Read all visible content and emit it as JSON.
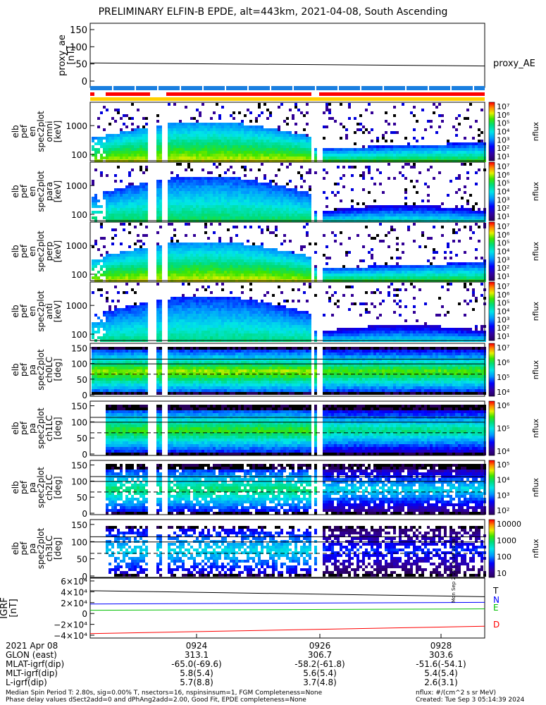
{
  "title": "PRELIMINARY ELFIN-B EPDE, alt=443km, 2021-04-08, South Ascending",
  "chart_data": [
    {
      "type": "line",
      "name": "proxy_ae",
      "ylabel_lines": [
        "proxy_ae",
        "[nT]"
      ],
      "legend": "proxy_AE",
      "yticks": [
        "150",
        "100",
        "50",
        "0"
      ],
      "ylim": [
        0,
        150
      ],
      "x_minutes": [
        0,
        7.6
      ],
      "values": [
        53,
        44
      ]
    },
    {
      "type": "heatmap",
      "name": "en_spec2plot_omni",
      "ylabel_lines": [
        "elb",
        "pef",
        "en",
        "spec2plot",
        "omni",
        "[keV]"
      ],
      "yticks": [
        "1000",
        "100"
      ],
      "cbar_label": "nflux",
      "cbar_ticks": [
        "10⁷",
        "10⁶",
        "10⁵",
        "10⁴",
        "10³",
        "10²",
        "10¹"
      ]
    },
    {
      "type": "heatmap",
      "name": "en_spec2plot_para",
      "ylabel_lines": [
        "elb",
        "pef",
        "en",
        "spec2plot",
        "para",
        "[keV]"
      ],
      "yticks": [
        "1000",
        "100"
      ],
      "cbar_label": "nflux",
      "cbar_ticks": [
        "10⁷",
        "10⁶",
        "10⁵",
        "10⁴",
        "10³",
        "10²",
        "10¹"
      ]
    },
    {
      "type": "heatmap",
      "name": "en_spec2plot_perp",
      "ylabel_lines": [
        "elb",
        "pef",
        "en",
        "spec2plot",
        "perp",
        "[keV]"
      ],
      "yticks": [
        "1000",
        "100"
      ],
      "cbar_label": "nflux",
      "cbar_ticks": [
        "10⁷",
        "10⁶",
        "10⁵",
        "10⁴",
        "10³",
        "10²",
        "10¹"
      ]
    },
    {
      "type": "heatmap",
      "name": "en_spec2plot_anti",
      "ylabel_lines": [
        "elb",
        "pef",
        "en",
        "spec2plot",
        "anti",
        "[keV]"
      ],
      "yticks": [
        "1000",
        "100"
      ],
      "cbar_label": "nflux",
      "cbar_ticks": [
        "10⁷",
        "10⁶",
        "10⁵",
        "10⁴",
        "10³",
        "10²",
        "10¹"
      ]
    },
    {
      "type": "heatmap",
      "name": "pa_spec2plot_ch0LC",
      "ylabel_lines": [
        "elb",
        "pef",
        "pa",
        "spec2plot",
        "ch0LC",
        "[deg]"
      ],
      "yticks": [
        "150",
        "100",
        "50",
        "0"
      ],
      "cbar_label": "nflux",
      "cbar_ticks": [
        "10⁷",
        "10⁶",
        "10⁵",
        "10⁴"
      ]
    },
    {
      "type": "heatmap",
      "name": "pa_spec2plot_ch1LC",
      "ylabel_lines": [
        "elb",
        "pef",
        "pa",
        "spec2plot",
        "ch1LC",
        "[deg]"
      ],
      "yticks": [
        "150",
        "100",
        "50",
        "0"
      ],
      "cbar_label": "nflux",
      "cbar_ticks": [
        "10⁶",
        "10⁵",
        "10⁴"
      ]
    },
    {
      "type": "heatmap",
      "name": "pa_spec2plot_ch2LC",
      "ylabel_lines": [
        "elb",
        "pef",
        "pa",
        "spec2plot",
        "ch2LC",
        "[deg]"
      ],
      "yticks": [
        "150",
        "100",
        "50",
        "0"
      ],
      "cbar_label": "nflux",
      "cbar_ticks": [
        "10⁵",
        "10⁴",
        "10³",
        "10²"
      ]
    },
    {
      "type": "heatmap",
      "name": "pa_spec2plot_ch3LC",
      "ylabel_lines": [
        "elb",
        "pef",
        "pa",
        "spec2plot",
        "ch3LC",
        "[deg]"
      ],
      "yticks": [
        "150",
        "100",
        "50",
        "0"
      ],
      "cbar_label": "nflux",
      "cbar_ticks": [
        "10000",
        "1000",
        "100",
        "10"
      ]
    },
    {
      "type": "line",
      "name": "IGRF",
      "ylabel_lines": [
        "IGRF",
        "[nT]"
      ],
      "yticks": [
        "6×10⁴",
        "4×10⁴",
        "2×10⁴",
        "0",
        "−2×10⁴",
        "−4×10⁴"
      ],
      "ylim": [
        -40000,
        60000
      ],
      "x_minutes": [
        0,
        7.6
      ],
      "series": [
        {
          "name": "T",
          "color": "#000000",
          "values": [
            42000,
            31000
          ]
        },
        {
          "name": "N",
          "color": "#0000ff",
          "values": [
            17500,
            20500
          ]
        },
        {
          "name": "E",
          "color": "#00c000",
          "values": [
            6000,
            8500
          ]
        },
        {
          "name": "D",
          "color": "#ff0000",
          "values": [
            -37000,
            -23500
          ]
        }
      ]
    }
  ],
  "xaxis": {
    "date": "2021 Apr 08",
    "row_labels": [
      "GLON (east)",
      "MLAT-igrf(dip)",
      "MLT-igrf(dip)",
      "L-igrf(dip)"
    ],
    "ticks": [
      {
        "label": "0924",
        "glon": "313.1",
        "mlat": "-65.0(-69.6)",
        "mlt": "5.8(5.4)",
        "l": "5.7(8.8)"
      },
      {
        "label": "0926",
        "glon": "306.7",
        "mlat": "-58.2(-61.8)",
        "mlt": "5.6(5.4)",
        "l": "3.7(4.8)"
      },
      {
        "label": "0928",
        "glon": "303.6",
        "mlat": "-51.6(-54.1)",
        "mlt": "5.4(5.4)",
        "l": "2.6(3.1)"
      }
    ]
  },
  "footer": {
    "left1": "Median Spin Period T: 2.80s, sig=0.00% T, nsectors=16, nspinsinsum=1, FGM Completeness=None",
    "left2": "Phase delay values dSect2add=0 and dPhAng2add=2.00, Good Fit, EPDE completeness=None",
    "right1": "nflux: #/(cm^2 s sr MeV)",
    "right2": "Created: Tue Sep  3 05:14:39 2024",
    "side_stamp": "Mon Sep  2 22:14:38 2024"
  }
}
